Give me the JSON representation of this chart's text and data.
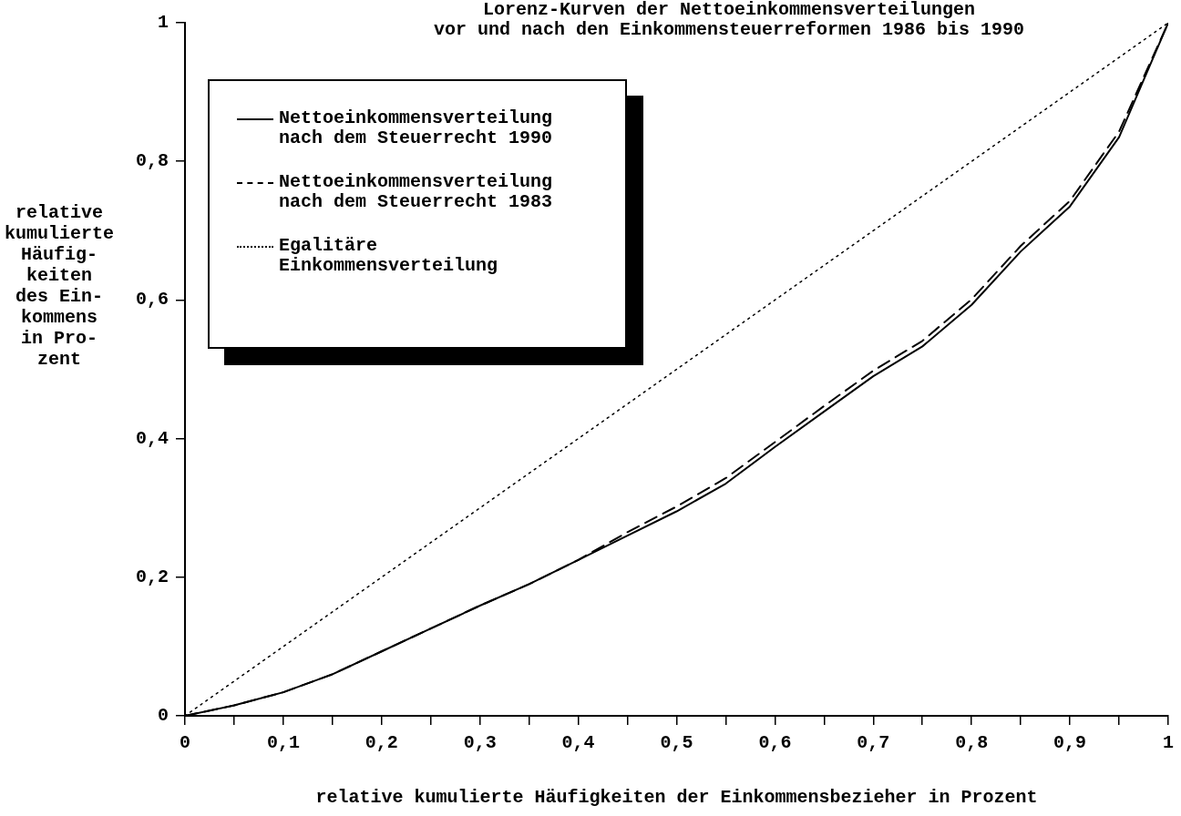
{
  "chart_data": {
    "type": "line",
    "title": "Lorenz-Kurven der Nettoeinkommensverteilungen\nvor und nach den Einkommensteuerreformen 1986 bis 1990",
    "xlabel": "relative kumulierte Häufigkeiten der Einkommensbezieher in Prozent",
    "ylabel": "relative\nkumulierte\nHäufig-\nkeiten\ndes Ein-\nkommens\nin Pro-\nzent",
    "series": [
      {
        "name": "Nettoeinkommensverteilung nach dem Steuerrecht 1990",
        "color": "#000000",
        "line_style": "solid",
        "x": [
          0,
          0.05,
          0.1,
          0.15,
          0.2,
          0.25,
          0.3,
          0.35,
          0.4,
          0.45,
          0.5,
          0.55,
          0.6,
          0.65,
          0.7,
          0.75,
          0.8,
          0.85,
          0.9,
          0.95,
          1
        ],
        "values": [
          0,
          0.015,
          0.034,
          0.06,
          0.093,
          0.126,
          0.159,
          0.19,
          0.225,
          0.26,
          0.295,
          0.335,
          0.388,
          0.439,
          0.49,
          0.533,
          0.593,
          0.67,
          0.735,
          0.835,
          1
        ]
      },
      {
        "name": "Nettoeinkommensverteilung nach dem Steuerrecht 1983",
        "color": "#000000",
        "line_style": "dashed",
        "x": [
          0,
          0.05,
          0.1,
          0.15,
          0.2,
          0.25,
          0.3,
          0.35,
          0.4,
          0.45,
          0.5,
          0.55,
          0.6,
          0.65,
          0.7,
          0.75,
          0.8,
          0.85,
          0.9,
          0.95,
          1
        ],
        "values": [
          0,
          0.015,
          0.034,
          0.06,
          0.093,
          0.126,
          0.159,
          0.19,
          0.225,
          0.265,
          0.302,
          0.343,
          0.395,
          0.447,
          0.498,
          0.541,
          0.601,
          0.678,
          0.743,
          0.843,
          1
        ]
      },
      {
        "name": "Egalitäre Einkommensverteilung",
        "color": "#000000",
        "line_style": "dotted",
        "x": [
          0,
          1
        ],
        "values": [
          0,
          1
        ]
      }
    ],
    "xlim": [
      0,
      1
    ],
    "ylim": [
      0,
      1
    ],
    "xticks": [
      0,
      {
        "value": 0.05,
        "label": null
      },
      {
        "value": 0.1,
        "label": "0,1"
      },
      {
        "value": 0.15,
        "label": null
      },
      {
        "value": 0.2,
        "label": "0,2"
      },
      {
        "value": 0.25,
        "label": null
      },
      {
        "value": 0.3,
        "label": "0,3"
      },
      {
        "value": 0.35,
        "label": null
      },
      {
        "value": 0.4,
        "label": "0,4"
      },
      {
        "value": 0.45,
        "label": null
      },
      {
        "value": 0.5,
        "label": "0,5"
      },
      {
        "value": 0.55,
        "label": null
      },
      {
        "value": 0.6,
        "label": "0,6"
      },
      {
        "value": 0.65,
        "label": null
      },
      {
        "value": 0.7,
        "label": "0,7"
      },
      {
        "value": 0.75,
        "label": null
      },
      {
        "value": 0.8,
        "label": "0,8"
      },
      {
        "value": 0.85,
        "label": null
      },
      {
        "value": 0.9,
        "label": "0,9"
      },
      {
        "value": 0.95,
        "label": null
      },
      1
    ],
    "yticks": [
      0,
      {
        "value": 0.2,
        "label": "0,2"
      },
      {
        "value": 0.4,
        "label": "0,4"
      },
      {
        "value": 0.6,
        "label": "0,6"
      },
      {
        "value": 0.8,
        "label": "0,8"
      },
      1
    ],
    "grid": false,
    "legend": "top left",
    "marker": "none"
  }
}
